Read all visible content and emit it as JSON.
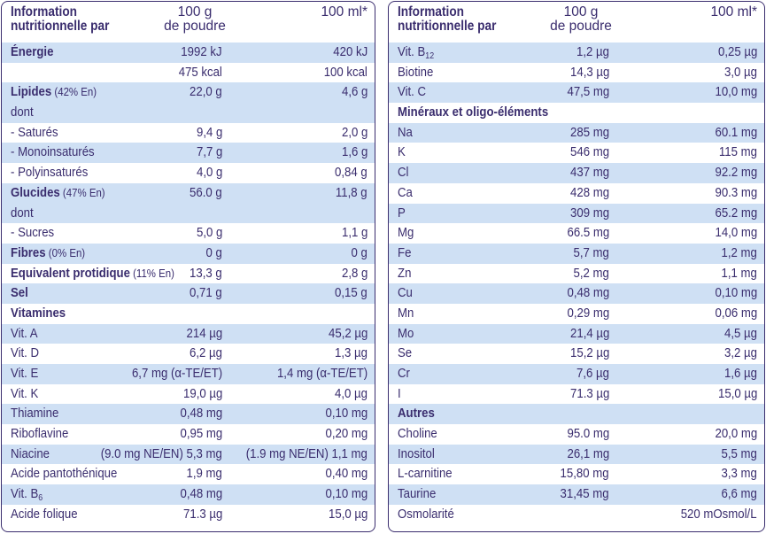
{
  "left": {
    "header": {
      "title_l1": "Information",
      "title_l2": "nutritionnelle par",
      "col1_l1": "100 g",
      "col1_l2": "de poudre",
      "col2": "100 ml*"
    },
    "rows": [
      {
        "label": "Énergie",
        "bold": true,
        "v1": "1992 kJ",
        "v2": "420 kJ",
        "shade": true
      },
      {
        "label": "",
        "v1": "475 kcal",
        "v2": "100 kcal",
        "shade": false
      },
      {
        "label": "Lipides",
        "bold": true,
        "note": " (42% En)",
        "v1": "22,0 g",
        "v2": "4,6 g",
        "shade": true
      },
      {
        "label": "dont",
        "v1": "",
        "v2": "",
        "shade": true
      },
      {
        "label": "- Saturés",
        "v1": "9,4 g",
        "v2": "2,0 g",
        "shade": false
      },
      {
        "label": "- Monoinsaturés",
        "v1": "7,7 g",
        "v2": "1,6 g",
        "shade": true
      },
      {
        "label": "- Polyinsaturés",
        "v1": "4,0 g",
        "v2": "0,84 g",
        "shade": false
      },
      {
        "label": "Glucides",
        "bold": true,
        "note": " (47% En)",
        "v1": "56.0 g",
        "v2": "11,8 g",
        "shade": true
      },
      {
        "label": "dont",
        "v1": "",
        "v2": "",
        "shade": true
      },
      {
        "label": "- Sucres",
        "v1": "5,0 g",
        "v2": "1,1 g",
        "shade": false
      },
      {
        "label": "Fibres",
        "bold": true,
        "note": " (0% En)",
        "v1": "0 g",
        "v2": "0 g",
        "shade": true
      },
      {
        "label": "Equivalent protidique",
        "bold": true,
        "note": " (11% En)",
        "v1": "13,3 g",
        "v2": "2,8 g",
        "shade": false
      },
      {
        "label": "Sel",
        "bold": true,
        "v1": "0,71 g",
        "v2": "0,15 g",
        "shade": true
      },
      {
        "label": "Vitamines",
        "bold": true,
        "v1": "",
        "v2": "",
        "shade": false
      },
      {
        "label": "Vit. A",
        "v1": "214 µg",
        "v2": "45,2 µg",
        "shade": true
      },
      {
        "label": "Vit. D",
        "v1": "6,2 µg",
        "v2": "1,3 µg",
        "shade": false
      },
      {
        "label": "Vit. E",
        "v1": "6,7 mg (α-TE/ET)",
        "v2": "1,4 mg (α-TE/ET)",
        "shade": true
      },
      {
        "label": "Vit. K",
        "v1": "19,0 µg",
        "v2": "4,0 µg",
        "shade": false
      },
      {
        "label": "Thiamine",
        "v1": "0,48 mg",
        "v2": "0,10 mg",
        "shade": true
      },
      {
        "label": "Riboflavine",
        "v1": "0,95 mg",
        "v2": "0,20 mg",
        "shade": false
      },
      {
        "label": "Niacine",
        "v1": "(9.0 mg NE/EN) 5,3 mg",
        "v2": "(1.9 mg NE/EN) 1,1 mg",
        "shade": true
      },
      {
        "label": "Acide pantothénique",
        "v1": "1,9 mg",
        "v2": "0,40 mg",
        "shade": false
      },
      {
        "label": "Vit. B",
        "sub": "6",
        "v1": "0,48 mg",
        "v2": "0,10 mg",
        "shade": true
      },
      {
        "label": "Acide folique",
        "v1": "71.3 µg",
        "v2": "15,0 µg",
        "shade": false
      }
    ]
  },
  "right": {
    "header": {
      "title_l1": "Information",
      "title_l2": "nutritionnelle par",
      "col1_l1": "100 g",
      "col1_l2": "de poudre",
      "col2": "100 ml*"
    },
    "rows": [
      {
        "label": "Vit. B",
        "sub": "12",
        "v1": "1,2 µg",
        "v2": "0,25 µg",
        "shade": true
      },
      {
        "label": "Biotine",
        "v1": "14,3 µg",
        "v2": "3,0 µg",
        "shade": false
      },
      {
        "label": "Vit. C",
        "v1": "47,5 mg",
        "v2": "10,0 mg",
        "shade": true
      },
      {
        "label": "Minéraux et oligo-éléments",
        "bold": true,
        "v1": "",
        "v2": "",
        "shade": false
      },
      {
        "label": "Na",
        "v1": "285 mg",
        "v2": "60.1 mg",
        "shade": true
      },
      {
        "label": "K",
        "v1": "546 mg",
        "v2": "115 mg",
        "shade": false
      },
      {
        "label": "Cl",
        "v1": "437 mg",
        "v2": "92.2 mg",
        "shade": true
      },
      {
        "label": "Ca",
        "v1": "428 mg",
        "v2": "90.3 mg",
        "shade": false
      },
      {
        "label": "P",
        "v1": "309 mg",
        "v2": "65.2 mg",
        "shade": true
      },
      {
        "label": "Mg",
        "v1": "66.5 mg",
        "v2": "14,0 mg",
        "shade": false
      },
      {
        "label": "Fe",
        "v1": "5,7 mg",
        "v2": "1,2 mg",
        "shade": true
      },
      {
        "label": "Zn",
        "v1": "5,2 mg",
        "v2": "1,1 mg",
        "shade": false
      },
      {
        "label": "Cu",
        "v1": "0,48 mg",
        "v2": "0,10 mg",
        "shade": true
      },
      {
        "label": "Mn",
        "v1": "0,29 mg",
        "v2": "0,06 mg",
        "shade": false
      },
      {
        "label": "Mo",
        "v1": "21,4 µg",
        "v2": "4,5 µg",
        "shade": true
      },
      {
        "label": "Se",
        "v1": "15,2 µg",
        "v2": "3,2 µg",
        "shade": false
      },
      {
        "label": "Cr",
        "v1": "7,6 µg",
        "v2": "1,6 µg",
        "shade": true
      },
      {
        "label": "I",
        "v1": "71.3 µg",
        "v2": "15,0 µg",
        "shade": false
      },
      {
        "label": "Autres",
        "bold": true,
        "v1": "",
        "v2": "",
        "shade": true
      },
      {
        "label": "Choline",
        "v1": "95.0 mg",
        "v2": "20,0 mg",
        "shade": false
      },
      {
        "label": "Inositol",
        "v1": "26,1 mg",
        "v2": "5,5 mg",
        "shade": true
      },
      {
        "label": "L-carnitine",
        "v1": "15,80 mg",
        "v2": "3,3 mg",
        "shade": false
      },
      {
        "label": "Taurine",
        "v1": "31,45 mg",
        "v2": "6,6 mg",
        "shade": true
      },
      {
        "label": "Osmolarité",
        "v1": "",
        "v2": "520 mOsmol/L",
        "shade": false
      }
    ]
  }
}
